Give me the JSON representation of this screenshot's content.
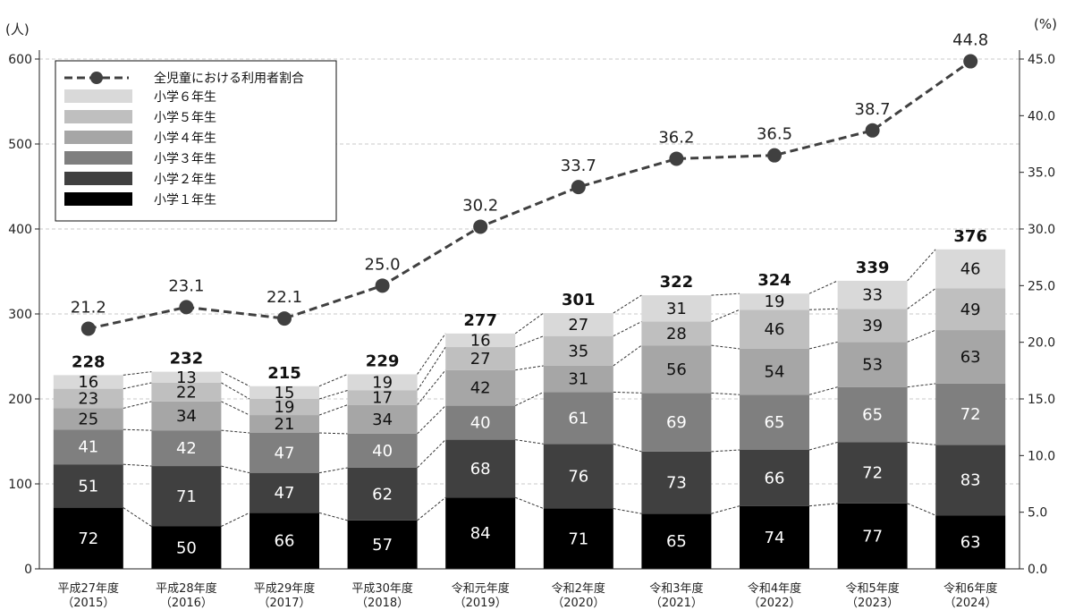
{
  "chart_data": {
    "type": "bar",
    "stacked": true,
    "left_axis_unit": "(人)",
    "right_axis_unit": "(%)",
    "ylim": [
      0,
      600
    ],
    "y2lim": [
      0,
      45
    ],
    "yticks": [
      "0",
      "100",
      "200",
      "300",
      "400",
      "500",
      "600"
    ],
    "y2ticks": [
      "0.0",
      "5.0",
      "10.0",
      "15.0",
      "20.0",
      "25.0",
      "30.0",
      "35.0",
      "40.0",
      "45.0"
    ],
    "grid": true,
    "legend_position": "top-left",
    "categories": [
      {
        "line1": "平成27年度",
        "line2": "（2015）"
      },
      {
        "line1": "平成28年度",
        "line2": "（2016）"
      },
      {
        "line1": "平成29年度",
        "line2": "（2017）"
      },
      {
        "line1": "平成30年度",
        "line2": "（2018）"
      },
      {
        "line1": "令和元年度",
        "line2": "（2019）"
      },
      {
        "line1": "令和2年度",
        "line2": "（2020）"
      },
      {
        "line1": "令和3年度",
        "line2": "（2021）"
      },
      {
        "line1": "令和4年度",
        "line2": "（2022）"
      },
      {
        "line1": "令和5年度",
        "line2": "（2023）"
      },
      {
        "line1": "令和6年度",
        "line2": "（2024）"
      }
    ],
    "series": [
      {
        "name": "小学１年生",
        "color": "#000000",
        "text_color": "#ffffff",
        "values": [
          72,
          50,
          66,
          57,
          84,
          71,
          65,
          74,
          77,
          63
        ]
      },
      {
        "name": "小学２年生",
        "color": "#404040",
        "text_color": "#ffffff",
        "values": [
          51,
          71,
          47,
          62,
          68,
          76,
          73,
          66,
          72,
          83
        ]
      },
      {
        "name": "小学３年生",
        "color": "#7f7f7f",
        "text_color": "#ffffff",
        "values": [
          41,
          42,
          47,
          40,
          40,
          61,
          69,
          65,
          65,
          72
        ]
      },
      {
        "name": "小学４年生",
        "color": "#a6a6a6",
        "text_color": "#111111",
        "values": [
          25,
          34,
          21,
          34,
          42,
          31,
          56,
          54,
          53,
          63
        ]
      },
      {
        "name": "小学５年生",
        "color": "#bfbfbf",
        "text_color": "#111111",
        "values": [
          23,
          22,
          19,
          17,
          27,
          35,
          28,
          46,
          39,
          49
        ]
      },
      {
        "name": "小学６年生",
        "color": "#d9d9d9",
        "text_color": "#111111",
        "values": [
          16,
          13,
          15,
          19,
          16,
          27,
          31,
          19,
          33,
          46
        ]
      }
    ],
    "totals": [
      228,
      232,
      215,
      229,
      277,
      301,
      322,
      324,
      339,
      376
    ],
    "line": {
      "name": "全児童における利用者割合",
      "color": "#404040",
      "values": [
        21.2,
        23.1,
        22.1,
        25.0,
        30.2,
        33.7,
        36.2,
        36.5,
        38.7,
        44.8
      ],
      "labels": [
        "21.2",
        "23.1",
        "22.1",
        "25.0",
        "30.2",
        "33.7",
        "36.2",
        "36.5",
        "38.7",
        "44.8"
      ]
    }
  }
}
